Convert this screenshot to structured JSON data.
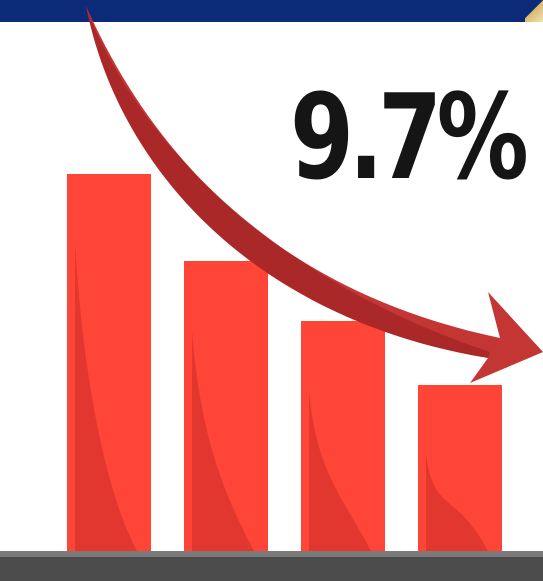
{
  "headline": {
    "value_text": "9.7%"
  },
  "graphic": {
    "bar_levels": [
      1.0,
      0.77,
      0.61,
      0.44
    ],
    "colors": {
      "bar": "#ff4438",
      "bar_shadow": "#c92d28",
      "arrow": "#c43633",
      "arrow_dark": "#9c2222",
      "baseline": "#555555",
      "top_band": "#0b2a78",
      "text": "#151515"
    },
    "icons": [
      "downward-trend-arrow-icon"
    ]
  }
}
